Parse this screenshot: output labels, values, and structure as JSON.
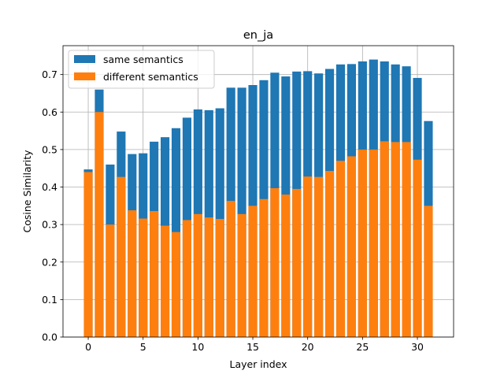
{
  "chart_data": {
    "type": "bar",
    "title": "en_ja",
    "xlabel": "Layer index",
    "ylabel": "Cosine Similarity",
    "x": [
      0,
      1,
      2,
      3,
      4,
      5,
      6,
      7,
      8,
      9,
      10,
      11,
      12,
      13,
      14,
      15,
      16,
      17,
      18,
      19,
      20,
      21,
      22,
      23,
      24,
      25,
      26,
      27,
      28,
      29,
      30,
      31
    ],
    "xlim": [
      -2.3,
      33.3
    ],
    "ylim": [
      0,
      0.777
    ],
    "xticks": [
      0,
      5,
      10,
      15,
      20,
      25,
      30
    ],
    "xtick_labels": [
      "0",
      "5",
      "10",
      "15",
      "20",
      "25",
      "30"
    ],
    "yticks": [
      0.0,
      0.1,
      0.2,
      0.3,
      0.4,
      0.5,
      0.6,
      0.7
    ],
    "ytick_labels": [
      "0.0",
      "0.1",
      "0.2",
      "0.3",
      "0.4",
      "0.5",
      "0.6",
      "0.7"
    ],
    "grid": true,
    "legend_position": "top-left",
    "series": [
      {
        "name": "same semantics",
        "color": "#1f77b4",
        "values": [
          0.447,
          0.66,
          0.46,
          0.548,
          0.488,
          0.49,
          0.521,
          0.533,
          0.557,
          0.585,
          0.607,
          0.605,
          0.61,
          0.665,
          0.665,
          0.672,
          0.685,
          0.705,
          0.695,
          0.708,
          0.709,
          0.703,
          0.715,
          0.727,
          0.728,
          0.735,
          0.74,
          0.735,
          0.727,
          0.722,
          0.691,
          0.576
        ]
      },
      {
        "name": "different semantics",
        "color": "#ff7f0e",
        "values": [
          0.44,
          0.6,
          0.3,
          0.427,
          0.338,
          0.316,
          0.336,
          0.297,
          0.28,
          0.312,
          0.328,
          0.319,
          0.315,
          0.363,
          0.328,
          0.35,
          0.368,
          0.397,
          0.38,
          0.395,
          0.428,
          0.427,
          0.443,
          0.47,
          0.482,
          0.5,
          0.5,
          0.522,
          0.52,
          0.52,
          0.473,
          0.35
        ]
      }
    ]
  }
}
